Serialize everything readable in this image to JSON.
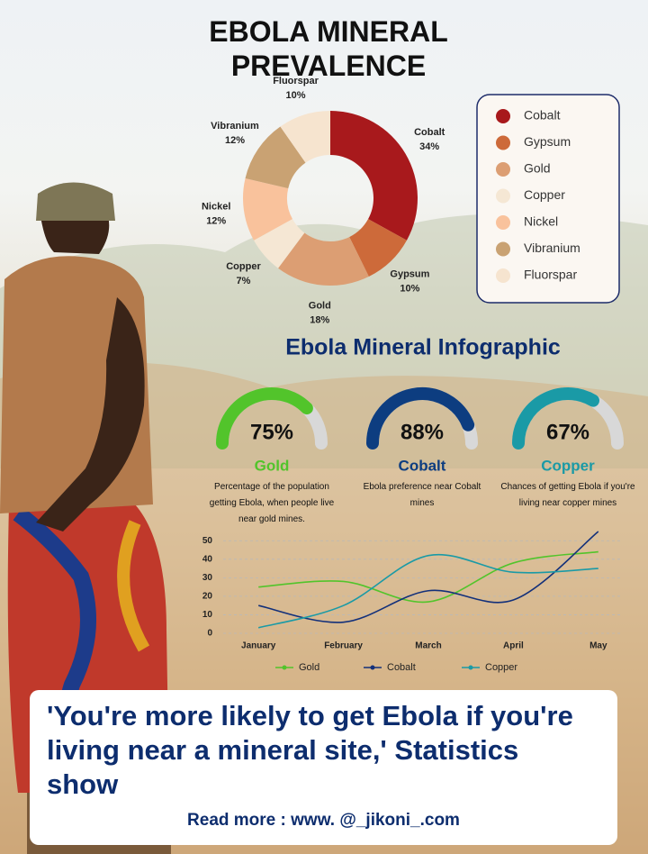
{
  "chart_data": [
    {
      "type": "donut",
      "title": "EBOLA MINERAL PREVALENCE",
      "categories": [
        "Cobalt",
        "Gypsum",
        "Gold",
        "Copper",
        "Nickel",
        "Vibranium",
        "Fluorspar"
      ],
      "values": [
        34,
        10,
        18,
        7,
        12,
        12,
        10
      ],
      "value_labels": [
        "34%",
        "10%",
        "18%",
        "7%",
        "12%",
        "12%",
        "10%"
      ],
      "colors": [
        "#a8191c",
        "#cd6a3a",
        "#dc9e73",
        "#f5e7d4",
        "#f9c29c",
        "#c9a273",
        "#f6e4cf"
      ],
      "legend": "right"
    },
    {
      "type": "gauge",
      "title": "Ebola Mineral Infographic",
      "ylim": [
        0,
        100
      ],
      "series": [
        {
          "name": "Gold",
          "color": "#52c42b",
          "values": [
            75
          ],
          "value_labels": [
            "75%"
          ],
          "description": "Percentage of the population getting Ebola, when people live near gold mines."
        },
        {
          "name": "Cobalt",
          "color": "#0d3d80",
          "values": [
            88
          ],
          "value_labels": [
            "88%"
          ],
          "description": "Ebola preference near Cobalt mines"
        },
        {
          "name": "Copper",
          "color": "#1a9aa6",
          "values": [
            67
          ],
          "value_labels": [
            "67%"
          ],
          "description": "Chances of getting Ebola if you're living near copper mines"
        }
      ]
    },
    {
      "type": "line",
      "categories": [
        "January",
        "February",
        "March",
        "April",
        "May"
      ],
      "series": [
        {
          "name": "Gold",
          "color": "#52c42b",
          "values": [
            25,
            28,
            17,
            38,
            44
          ]
        },
        {
          "name": "Cobalt",
          "color": "#13307a",
          "values": [
            15,
            6,
            23,
            18,
            55
          ]
        },
        {
          "name": "Copper",
          "color": "#1a9aa6",
          "values": [
            3,
            15,
            42,
            33,
            35
          ]
        }
      ],
      "ylim": [
        0,
        55
      ],
      "yticks": [
        0,
        10,
        20,
        30,
        40,
        50
      ],
      "grid": true,
      "legend": "bottom"
    }
  ],
  "headline": "'You're more likely to get Ebola if you're living near a mineral site,' Statistics show",
  "footer": "Read more : www. @_jikoni_.com"
}
